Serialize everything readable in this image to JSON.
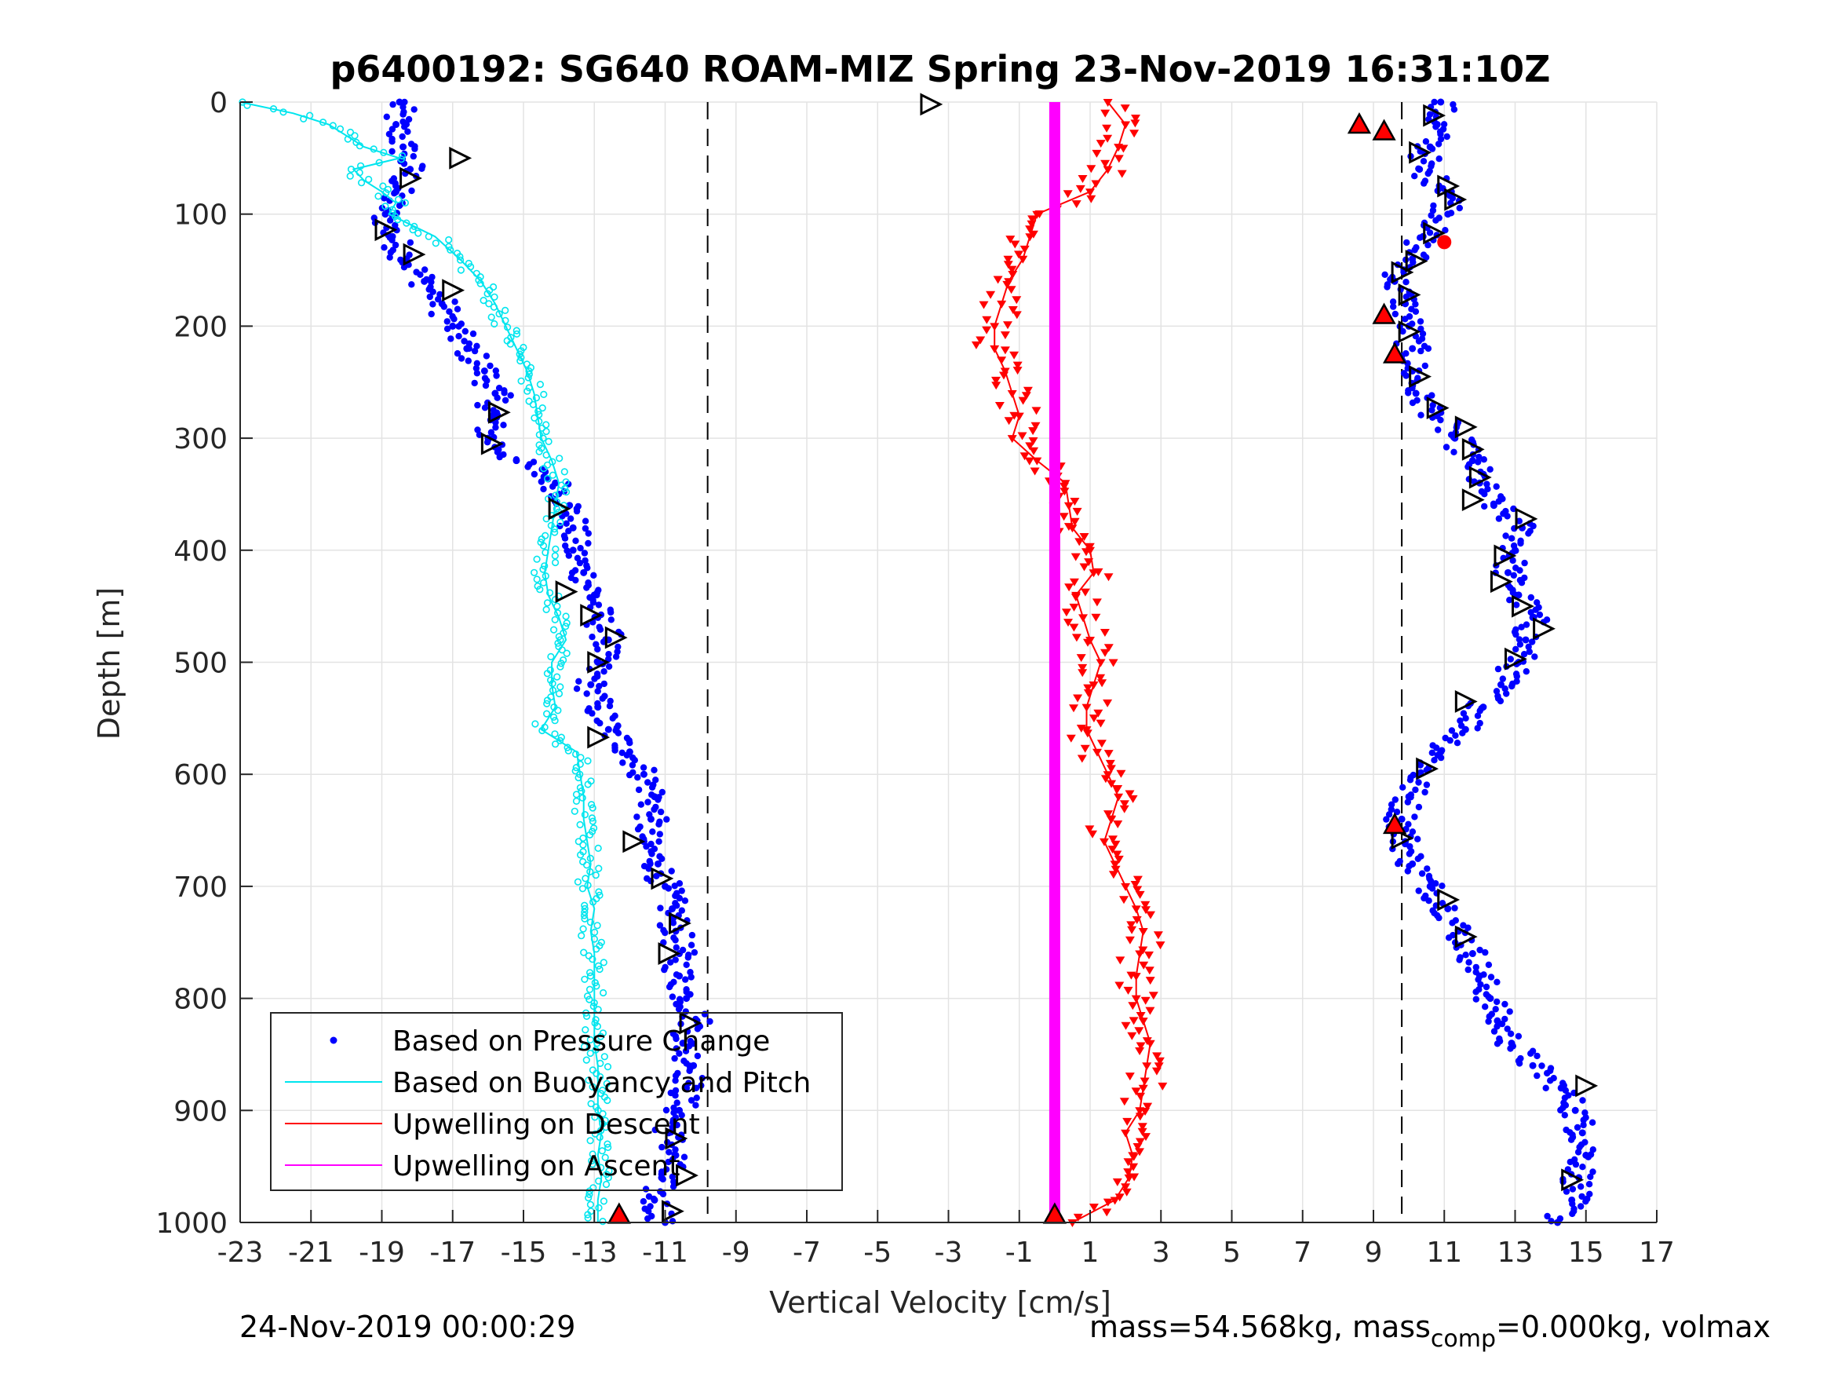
{
  "chart_data": {
    "type": "scatter",
    "title": "p6400192: SG640 ROAM-MIZ Spring 23-Nov-2019 16:31:10Z",
    "xlabel": "Vertical Velocity [cm/s]",
    "ylabel": "Depth [m]",
    "xlim": [
      -23,
      17
    ],
    "ylim": [
      1000,
      0
    ],
    "xticks": [
      "-23",
      "-21",
      "-19",
      "-17",
      "-15",
      "-13",
      "-11",
      "-9",
      "-7",
      "-5",
      "-3",
      "-1",
      "1",
      "3",
      "5",
      "7",
      "9",
      "11",
      "13",
      "15",
      "17"
    ],
    "yticks": [
      "0",
      "100",
      "200",
      "300",
      "400",
      "500",
      "600",
      "700",
      "800",
      "900",
      "1000"
    ],
    "grid": true,
    "legend_position": "bottom-left",
    "reference_lines_x": [
      -9.8,
      9.8
    ],
    "legend": [
      {
        "label": "Based on Pressure Change",
        "color": "#0000ff",
        "style": "dot"
      },
      {
        "label": "Based on Buoyancy and Pitch",
        "color": "#00e5ee",
        "style": "line"
      },
      {
        "label": "Upwelling on Descent",
        "color": "#ff0000",
        "style": "line"
      },
      {
        "label": "Upwelling on Ascent",
        "color": "#ff00ff",
        "style": "line"
      }
    ],
    "series": [
      {
        "name": "Based on Pressure Change (descent)",
        "color": "#0000ff",
        "depth": [
          0,
          20,
          40,
          60,
          80,
          100,
          120,
          140,
          160,
          180,
          200,
          220,
          240,
          260,
          280,
          300,
          320,
          340,
          360,
          380,
          400,
          420,
          440,
          460,
          480,
          500,
          520,
          540,
          560,
          580,
          600,
          620,
          640,
          660,
          680,
          700,
          720,
          740,
          760,
          780,
          800,
          820,
          840,
          860,
          880,
          900,
          920,
          940,
          960,
          980,
          1000
        ],
        "velocity": [
          -18.5,
          -18.6,
          -18.4,
          -18.2,
          -18.6,
          -18.9,
          -18.7,
          -18.3,
          -17.8,
          -17.3,
          -17.0,
          -16.6,
          -16.1,
          -15.8,
          -15.9,
          -16.0,
          -15.2,
          -14.1,
          -13.7,
          -13.6,
          -13.6,
          -13.3,
          -13.0,
          -12.9,
          -12.6,
          -12.9,
          -13.1,
          -12.9,
          -12.6,
          -12.0,
          -11.6,
          -11.3,
          -11.4,
          -11.6,
          -11.2,
          -11.0,
          -10.8,
          -10.7,
          -10.6,
          -10.6,
          -10.4,
          -10.1,
          -10.5,
          -10.2,
          -10.4,
          -10.6,
          -10.9,
          -10.7,
          -11.1,
          -11.3,
          -11.0
        ]
      },
      {
        "name": "Based on Pressure Change (ascent)",
        "color": "#0000ff",
        "depth": [
          0,
          20,
          40,
          60,
          80,
          100,
          120,
          140,
          160,
          180,
          200,
          220,
          240,
          260,
          280,
          300,
          320,
          340,
          360,
          380,
          400,
          420,
          440,
          460,
          480,
          500,
          520,
          540,
          560,
          580,
          600,
          620,
          640,
          660,
          680,
          700,
          720,
          740,
          760,
          780,
          800,
          820,
          840,
          860,
          880,
          900,
          920,
          940,
          960,
          980,
          1000
        ],
        "velocity": [
          10.9,
          10.8,
          10.6,
          10.3,
          11.2,
          11.1,
          10.4,
          10.1,
          9.6,
          9.9,
          10.0,
          10.1,
          10.1,
          10.2,
          10.8,
          11.3,
          11.8,
          12.0,
          12.4,
          13.2,
          13.0,
          12.8,
          13.1,
          13.5,
          13.3,
          13.1,
          12.6,
          12.1,
          11.6,
          10.9,
          10.3,
          10.0,
          9.8,
          9.9,
          10.1,
          10.6,
          11.1,
          11.4,
          11.8,
          12.0,
          12.3,
          12.5,
          12.9,
          13.5,
          14.3,
          14.7,
          14.9,
          15.0,
          14.8,
          14.6,
          14.2
        ]
      },
      {
        "name": "Based on Buoyancy and Pitch",
        "color": "#00e5ee",
        "depth": [
          0,
          10,
          20,
          30,
          40,
          50,
          60,
          70,
          80,
          90,
          100,
          120,
          140,
          160,
          180,
          200,
          220,
          240,
          260,
          280,
          300,
          320,
          340,
          360,
          380,
          400,
          420,
          440,
          460,
          480,
          500,
          520,
          540,
          560,
          580,
          600,
          620,
          640,
          660,
          680,
          700,
          720,
          740,
          760,
          780,
          800,
          820,
          840,
          860,
          880,
          900,
          920,
          940,
          960,
          980,
          1000
        ],
        "velocity": [
          -23.0,
          -21.5,
          -20.5,
          -20.0,
          -19.5,
          -18.5,
          -19.8,
          -19.5,
          -19.0,
          -18.6,
          -18.8,
          -17.5,
          -16.8,
          -16.2,
          -15.8,
          -15.5,
          -15.2,
          -14.9,
          -14.7,
          -14.6,
          -14.5,
          -14.2,
          -14.0,
          -14.1,
          -14.2,
          -14.3,
          -14.4,
          -14.3,
          -14.0,
          -13.8,
          -14.2,
          -14.2,
          -14.1,
          -14.5,
          -13.5,
          -13.4,
          -13.3,
          -13.3,
          -13.2,
          -13.1,
          -13.2,
          -13.0,
          -13.1,
          -13.0,
          -13.0,
          -13.0,
          -13.0,
          -13.0,
          -12.9,
          -12.9,
          -12.9,
          -12.8,
          -12.9,
          -12.8,
          -12.9,
          -12.9
        ]
      },
      {
        "name": "Upwelling on Descent",
        "color": "#ff0000",
        "depth": [
          0,
          20,
          40,
          60,
          80,
          100,
          120,
          140,
          160,
          180,
          200,
          220,
          240,
          260,
          280,
          300,
          320,
          340,
          360,
          380,
          400,
          420,
          440,
          460,
          480,
          500,
          520,
          540,
          560,
          580,
          600,
          620,
          640,
          660,
          680,
          700,
          720,
          740,
          760,
          780,
          800,
          820,
          840,
          860,
          880,
          900,
          920,
          940,
          960,
          980,
          1000
        ],
        "velocity": [
          1.5,
          2.0,
          1.8,
          1.5,
          1.0,
          -0.5,
          -0.7,
          -0.9,
          -1.3,
          -1.5,
          -1.7,
          -1.7,
          -1.4,
          -1.2,
          -1.0,
          -1.2,
          -0.5,
          0.3,
          0.4,
          0.5,
          1.0,
          1.1,
          0.6,
          0.8,
          1.0,
          1.3,
          1.1,
          0.9,
          0.9,
          1.2,
          1.5,
          1.8,
          1.6,
          1.4,
          1.7,
          2.0,
          2.3,
          2.5,
          2.4,
          2.3,
          2.3,
          2.5,
          2.7,
          2.6,
          2.5,
          2.4,
          2.0,
          2.2,
          2.1,
          1.7,
          0.5
        ]
      },
      {
        "name": "Upwelling on Ascent",
        "color": "#ff00ff",
        "depth": [
          0,
          1000
        ],
        "velocity": [
          0.0,
          0.0
        ]
      }
    ],
    "markers_open_triangles": [
      {
        "velocity": -3.5,
        "depth": 2
      },
      {
        "velocity": -16.8,
        "depth": 50
      },
      {
        "velocity": -18.2,
        "depth": 68
      },
      {
        "velocity": -18.9,
        "depth": 114
      },
      {
        "velocity": -18.1,
        "depth": 136
      },
      {
        "velocity": -17.0,
        "depth": 168
      },
      {
        "velocity": -15.7,
        "depth": 277
      },
      {
        "velocity": -15.9,
        "depth": 305
      },
      {
        "velocity": -14.0,
        "depth": 363
      },
      {
        "velocity": -13.8,
        "depth": 437
      },
      {
        "velocity": -13.1,
        "depth": 458
      },
      {
        "velocity": -12.4,
        "depth": 478
      },
      {
        "velocity": -12.9,
        "depth": 500
      },
      {
        "velocity": -12.9,
        "depth": 567
      },
      {
        "velocity": -11.9,
        "depth": 660
      },
      {
        "velocity": -11.1,
        "depth": 693
      },
      {
        "velocity": -10.6,
        "depth": 733
      },
      {
        "velocity": -10.9,
        "depth": 760
      },
      {
        "velocity": -10.3,
        "depth": 822
      },
      {
        "velocity": -10.7,
        "depth": 925
      },
      {
        "velocity": -10.4,
        "depth": 958
      },
      {
        "velocity": -10.8,
        "depth": 990
      },
      {
        "velocity": 10.7,
        "depth": 12
      },
      {
        "velocity": 10.3,
        "depth": 45
      },
      {
        "velocity": 11.1,
        "depth": 75
      },
      {
        "velocity": 11.3,
        "depth": 87
      },
      {
        "velocity": 10.7,
        "depth": 117
      },
      {
        "velocity": 10.2,
        "depth": 142
      },
      {
        "velocity": 9.8,
        "depth": 152
      },
      {
        "velocity": 10.0,
        "depth": 172
      },
      {
        "velocity": 10.0,
        "depth": 205
      },
      {
        "velocity": 10.3,
        "depth": 245
      },
      {
        "velocity": 10.8,
        "depth": 273
      },
      {
        "velocity": 11.6,
        "depth": 290
      },
      {
        "velocity": 11.8,
        "depth": 310
      },
      {
        "velocity": 12.0,
        "depth": 335
      },
      {
        "velocity": 11.8,
        "depth": 355
      },
      {
        "velocity": 13.3,
        "depth": 372
      },
      {
        "velocity": 12.7,
        "depth": 405
      },
      {
        "velocity": 12.6,
        "depth": 428
      },
      {
        "velocity": 13.2,
        "depth": 450
      },
      {
        "velocity": 13.8,
        "depth": 470
      },
      {
        "velocity": 13.0,
        "depth": 497
      },
      {
        "velocity": 11.6,
        "depth": 535
      },
      {
        "velocity": 10.5,
        "depth": 595
      },
      {
        "velocity": 9.8,
        "depth": 657
      },
      {
        "velocity": 11.1,
        "depth": 712
      },
      {
        "velocity": 11.6,
        "depth": 745
      },
      {
        "velocity": 15.0,
        "depth": 878
      },
      {
        "velocity": 14.6,
        "depth": 962
      }
    ],
    "markers_red_triangles": [
      {
        "velocity": 8.6,
        "depth": 20
      },
      {
        "velocity": 9.3,
        "depth": 26
      },
      {
        "velocity": 9.3,
        "depth": 190
      },
      {
        "velocity": 9.6,
        "depth": 225
      },
      {
        "velocity": 9.6,
        "depth": 645
      },
      {
        "velocity": -12.3,
        "depth": 993
      },
      {
        "velocity": 0.0,
        "depth": 993
      }
    ],
    "markers_red_dots": [
      {
        "velocity": 11.0,
        "depth": 125
      }
    ]
  },
  "footer": {
    "timestamp": "24-Nov-2019 00:00:29",
    "mass_text": "mass=54.568kg, mass",
    "mass_sub": "comp",
    "mass_tail": "=0.000kg, volmax"
  }
}
